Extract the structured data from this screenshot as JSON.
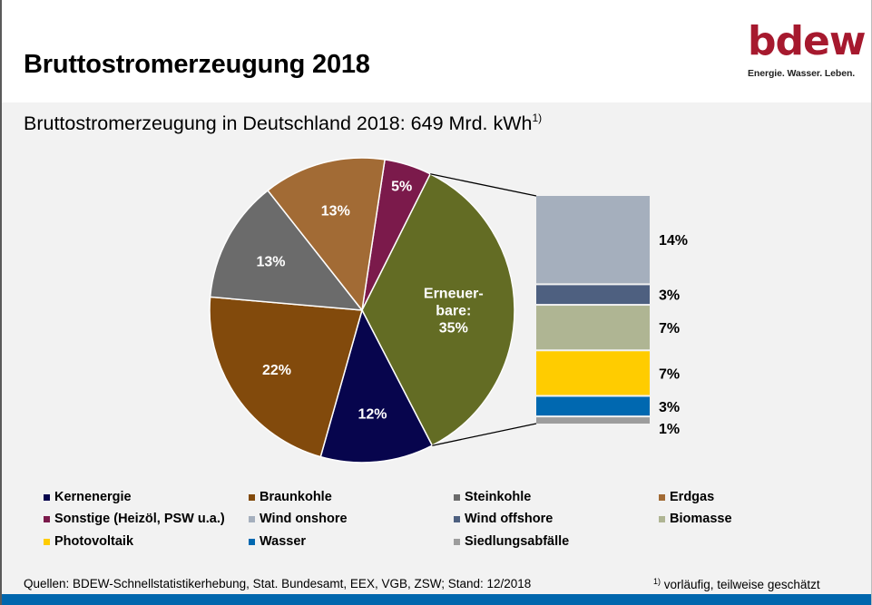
{
  "header": {
    "title": "Bruttostromerzeugung 2018",
    "logo_word": "bdew",
    "logo_tagline": "Energie. Wasser. Leben."
  },
  "subtitle": {
    "text": "Bruttostromerzeugung in Deutschland 2018: 649 Mrd. kWh",
    "footnote_mark": "1)"
  },
  "chart_data": [
    {
      "type": "pie",
      "title": "Bruttostromerzeugung in Deutschland 2018: 649 Mrd. kWh",
      "unit": "%",
      "slices": [
        {
          "name": "Sonstige (Heizöl, PSW u.a.)",
          "value": 5,
          "label": "5%",
          "color": "#7b1a4b"
        },
        {
          "name": "Erneuerbare",
          "value": 35,
          "label": "Erneuer-|bare:|35%",
          "color": "#636c24"
        },
        {
          "name": "Kernenergie",
          "value": 12,
          "label": "12%",
          "color": "#07054d"
        },
        {
          "name": "Braunkohle",
          "value": 22,
          "label": "22%",
          "color": "#824a0c"
        },
        {
          "name": "Steinkohle",
          "value": 13,
          "label": "13%",
          "color": "#6b6b6b"
        },
        {
          "name": "Erdgas",
          "value": 13,
          "label": "13%",
          "color": "#a26b35"
        }
      ],
      "exploded_slice": "Erneuerbare"
    },
    {
      "type": "bar",
      "stacked": true,
      "title": "Erneuerbare breakdown",
      "unit": "%",
      "segments": [
        {
          "name": "Wind onshore",
          "value": 14,
          "label": "14%",
          "color": "#a5afbd"
        },
        {
          "name": "Wind offshore",
          "value": 3,
          "label": "3%",
          "color": "#4e6080"
        },
        {
          "name": "Biomasse",
          "value": 7,
          "label": "7%",
          "color": "#afb593"
        },
        {
          "name": "Photovoltaik",
          "value": 7,
          "label": "7%",
          "color": "#ffcc00"
        },
        {
          "name": "Wasser",
          "value": 3,
          "label": "3%",
          "color": "#0068b0"
        },
        {
          "name": "Siedlungsabfälle",
          "value": 1,
          "label": "1%",
          "color": "#9d9d9d"
        }
      ]
    }
  ],
  "legend": {
    "items": [
      {
        "label": "Kernenergie",
        "color": "#07054d"
      },
      {
        "label": "Braunkohle",
        "color": "#824a0c"
      },
      {
        "label": "Steinkohle",
        "color": "#6b6b6b"
      },
      {
        "label": "Erdgas",
        "color": "#a26b35"
      },
      {
        "label": "Sonstige (Heizöl, PSW u.a.)",
        "color": "#7b1a4b"
      },
      {
        "label": "Wind onshore",
        "color": "#a5afbd"
      },
      {
        "label": "Wind offshore",
        "color": "#4e6080"
      },
      {
        "label": "Biomasse",
        "color": "#afb593"
      },
      {
        "label": "Photovoltaik",
        "color": "#ffcc00"
      },
      {
        "label": "Wasser",
        "color": "#0068b0"
      },
      {
        "label": "Siedlungsabfälle",
        "color": "#9d9d9d"
      }
    ]
  },
  "footer": {
    "sources": "Quellen: BDEW-Schnellstatistikerhebung, Stat. Bundesamt, EEX, VGB, ZSW; Stand: 12/2018",
    "note_mark": "1)",
    "note": " vorläufig, teilweise geschätzt"
  },
  "colors": {
    "brand": "#a6192e",
    "bottom_bar": "#0066ad"
  }
}
